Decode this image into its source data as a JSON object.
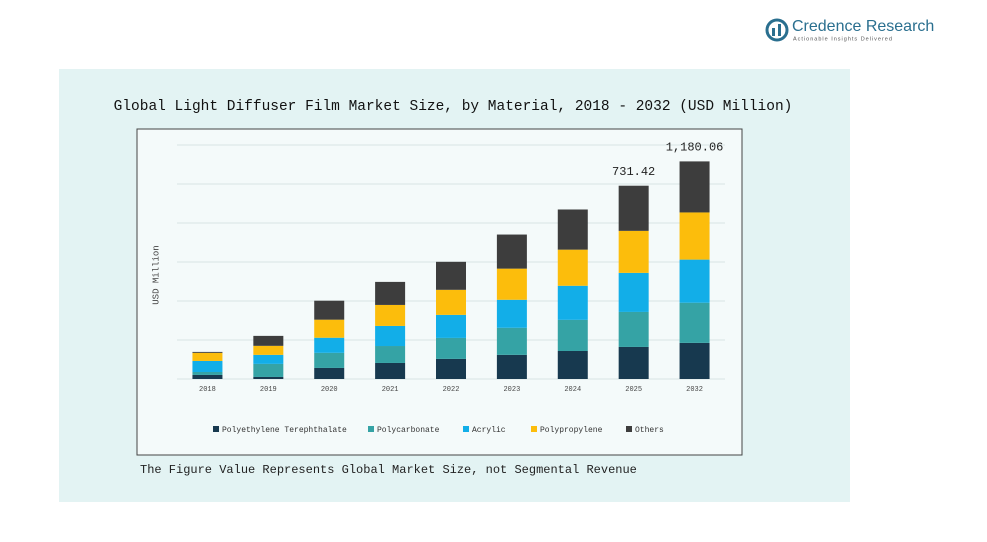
{
  "brand": {
    "name": "Credence Research",
    "tagline": "Actionable Insights Delivered"
  },
  "chart_data": {
    "type": "bar",
    "stacked": true,
    "title": "Global Light Diffuser Film Market Size, by Material, 2018 - 2032 (USD Million)",
    "y_label": "USD Million",
    "note": "The Figure Value Represents Global Market Size, not Segmental Revenue",
    "categories": [
      "2018",
      "2019",
      "2020",
      "2021",
      "2022",
      "2023",
      "2024",
      "2025",
      "2032"
    ],
    "series": [
      {
        "name": "Polyethylene Terephthalate",
        "color": "#17394f",
        "values": [
          22,
          11,
          60,
          87,
          109,
          131,
          152,
          174,
          196
        ]
      },
      {
        "name": "Polycarbonate",
        "color": "#35a3a5",
        "values": [
          16,
          71,
          82,
          92,
          114,
          147,
          169,
          190,
          218
        ]
      },
      {
        "name": "Acrylic",
        "color": "#12aee8",
        "values": [
          60,
          49,
          82,
          109,
          125,
          152,
          185,
          212,
          234
        ]
      },
      {
        "name": "Polypropylene",
        "color": "#fcbd0c",
        "values": [
          44,
          49,
          98,
          114,
          136,
          169,
          196,
          228,
          256
        ]
      },
      {
        "name": "Others",
        "color": "#3d3d3d",
        "values": [
          5,
          54,
          103,
          125,
          152,
          185,
          218,
          245,
          277
        ]
      }
    ],
    "totals": {
      "values": [
        null,
        null,
        null,
        null,
        null,
        null,
        null,
        731.42,
        1180.06
      ],
      "value_labels": [
        null,
        null,
        null,
        null,
        null,
        null,
        null,
        "731.42",
        "1,180.06"
      ]
    },
    "ylim": [
      0,
      1270
    ],
    "legend": "bottom"
  }
}
